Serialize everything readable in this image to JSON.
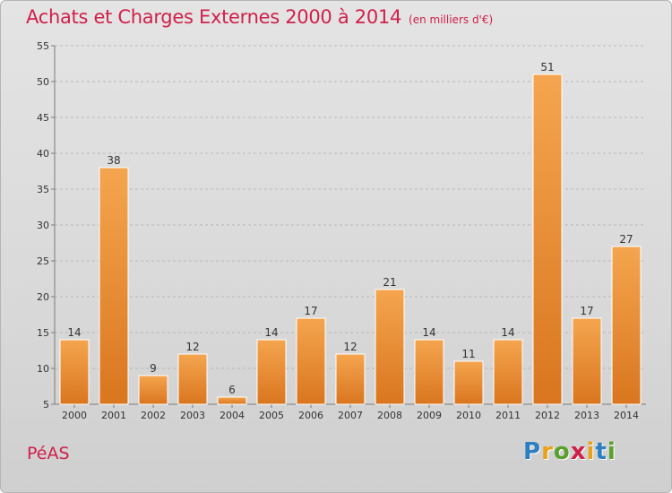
{
  "header": {
    "title": "Achats et Charges Externes 2000 à 2014",
    "subtitle": "(en milliers d'€)"
  },
  "footer": {
    "commune": "PéAS",
    "logo_letters": [
      "P",
      "r",
      "o",
      "x",
      "i",
      "t",
      "i"
    ],
    "logo_colors": [
      "#2d7fc1",
      "#e8a21a",
      "#5aa02c",
      "#d0204a",
      "#e8a21a",
      "#2d7fc1",
      "#5aa02c"
    ]
  },
  "colors": {
    "bar_top": "#f5a54f",
    "bar_bottom": "#d9761f",
    "bar_edge": "#ffffff",
    "axis": "#7a7a7a",
    "grid": "#b9b9b9",
    "text": "#333333",
    "accent": "#d0204a"
  },
  "chart_data": {
    "type": "bar",
    "categories": [
      "2000",
      "2001",
      "2002",
      "2003",
      "2004",
      "2005",
      "2006",
      "2007",
      "2008",
      "2009",
      "2010",
      "2011",
      "2012",
      "2013",
      "2014"
    ],
    "values": [
      14,
      38,
      9,
      12,
      6,
      14,
      17,
      12,
      21,
      14,
      11,
      14,
      51,
      17,
      27
    ],
    "ylim": [
      5,
      55
    ],
    "yticks": [
      5,
      10,
      15,
      20,
      25,
      30,
      35,
      40,
      45,
      50,
      55
    ],
    "grid": true,
    "xlabel": "",
    "ylabel": ""
  }
}
